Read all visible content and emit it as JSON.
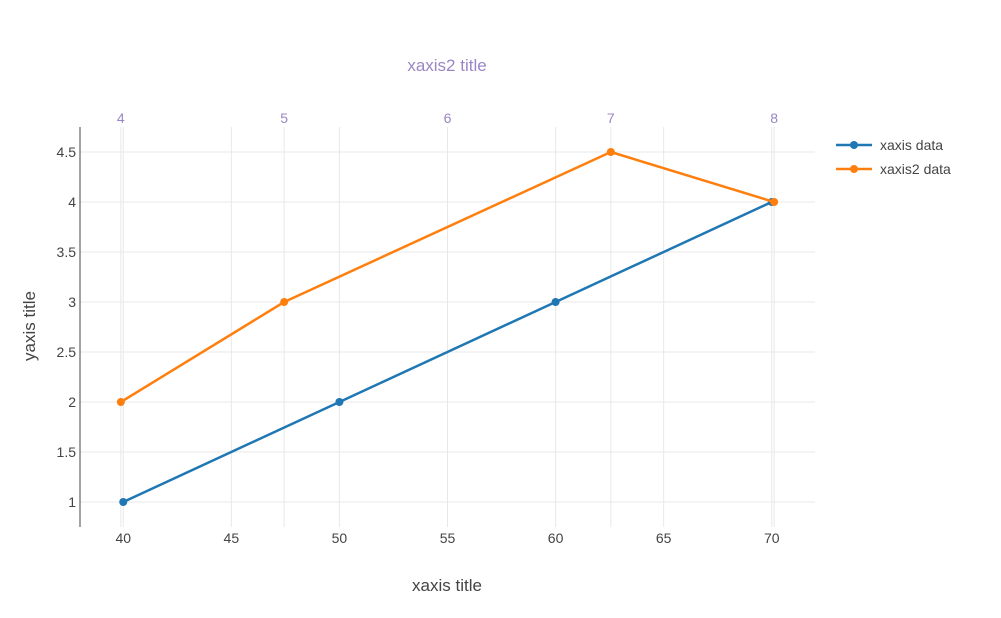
{
  "chart_data": {
    "type": "line",
    "xlabel": "xaxis title",
    "x2label": "xaxis2 title",
    "ylabel": "yaxis title",
    "xlim": [
      38,
      72
    ],
    "x2lim": [
      3.75,
      8.25
    ],
    "ylim": [
      0.75,
      4.75
    ],
    "x_ticks": [
      40,
      45,
      50,
      55,
      60,
      65,
      70
    ],
    "x2_ticks": [
      4,
      5,
      6,
      7,
      8
    ],
    "y_ticks": [
      1,
      1.5,
      2,
      2.5,
      3,
      3.5,
      4,
      4.5
    ],
    "grid": true,
    "legend_position": "top-right",
    "series": [
      {
        "name": "xaxis data",
        "axis": "x",
        "color": "#1f77b4",
        "x": [
          40,
          50,
          60,
          70
        ],
        "y": [
          1,
          2,
          3,
          4
        ]
      },
      {
        "name": "xaxis2 data",
        "axis": "x2",
        "color": "#ff7f0e",
        "x": [
          4,
          5,
          7,
          8
        ],
        "y": [
          2,
          3,
          4.5,
          4
        ]
      }
    ]
  },
  "colors": {
    "grid": "#e8e8e8",
    "axis_line": "#444444",
    "x2_text": "#9a86c4"
  }
}
